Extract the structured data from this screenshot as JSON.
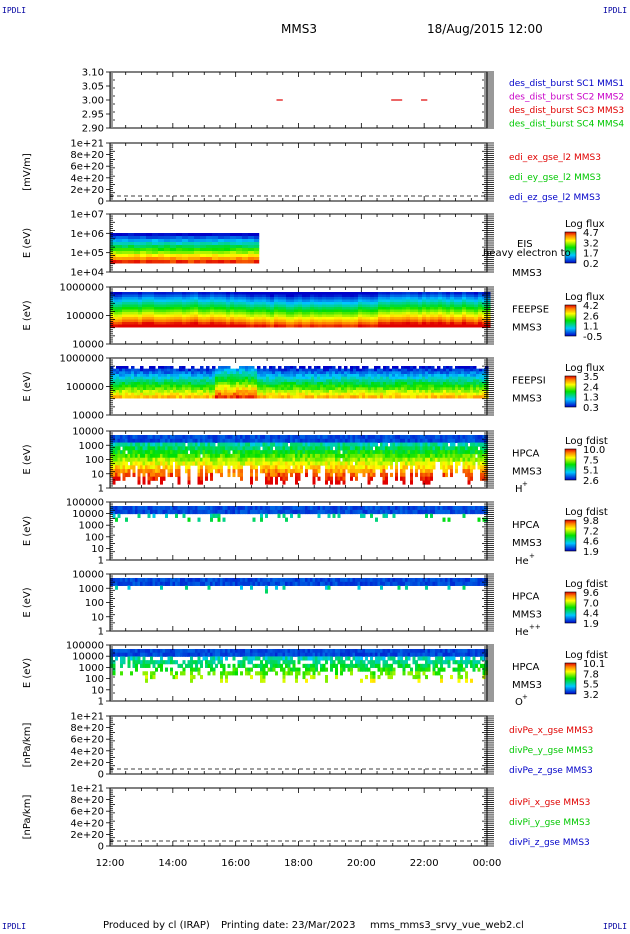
{
  "header": {
    "corner_tl": "IPDLI",
    "corner_tr": "IPDLI",
    "corner_bl": "IPDLI",
    "corner_br": "IPDLI",
    "spacecraft": "MMS3",
    "datetime": "18/Aug/2015 12:00"
  },
  "footer": {
    "produced": "Produced by cl (IRAP)",
    "printing": "Printing date: 23/Mar/2023",
    "file": "mms_mms3_srvy_vue_web2.cl"
  },
  "colors": {
    "mms1": "#0000c8",
    "mms2": "#c800c8",
    "mms3": "#e00000",
    "mms4": "#00c800",
    "x_comp": "#e00000",
    "y_comp": "#00c800",
    "z_comp": "#0000c8"
  },
  "chart_data": [
    {
      "id": "burst",
      "type": "scatter",
      "ylim": [
        2.9,
        3.1
      ],
      "yticks": [
        "3.10",
        "3.05",
        "3.00",
        "2.95",
        "2.90"
      ],
      "legend": [
        "des_dist_burst SC1 MMS1",
        "des_dist_burst SC2 MMS2",
        "des_dist_burst SC3 MMS3",
        "des_dist_burst SC4 MMS4"
      ],
      "series": [
        {
          "name": "des_dist_burst SC3 MMS3",
          "segments": [
            [
              17.3,
              17.5
            ],
            [
              20.95,
              21.3
            ],
            [
              21.9,
              22.1
            ]
          ],
          "y": 3.0
        }
      ]
    },
    {
      "id": "efield",
      "type": "line",
      "ylabel": "[mV/m]",
      "yticks": [
        "1e+21",
        "8e+20",
        "6e+20",
        "4e+20",
        "2e+20",
        "0"
      ],
      "legend": [
        "edi_ex_gse_l2 MMS3",
        "edi_ey_gse_l2 MMS3",
        "edi_ez_gse_l2 MMS3"
      ]
    },
    {
      "id": "eis",
      "type": "heatmap",
      "ylabel": "E (eV)",
      "yticks": [
        "1e+07",
        "1e+06",
        "1e+05",
        "1e+04"
      ],
      "instrument": "EIS",
      "sc": "MMS3",
      "extra_label": "heavy electron to",
      "cbar_title": "Log flux",
      "cbar_ticks": [
        "4.7",
        "3.2",
        "1.7",
        "0.2"
      ]
    },
    {
      "id": "feepse",
      "type": "heatmap",
      "ylabel": "E (eV)",
      "yticks": [
        "1000000",
        "100000",
        "10000"
      ],
      "instrument": "FEEPSE",
      "sc": "MMS3",
      "cbar_title": "Log flux",
      "cbar_ticks": [
        "4.2",
        "2.6",
        "1.1",
        "-0.5"
      ]
    },
    {
      "id": "feepsi",
      "type": "heatmap",
      "ylabel": "E (eV)",
      "yticks": [
        "1000000",
        "100000",
        "10000"
      ],
      "instrument": "FEEPSI",
      "sc": "MMS3",
      "cbar_title": "Log flux",
      "cbar_ticks": [
        "3.5",
        "2.4",
        "1.3",
        "0.3"
      ]
    },
    {
      "id": "hpca_h",
      "type": "heatmap",
      "ylabel": "E (eV)",
      "yticks": [
        "10000",
        "1000",
        "100",
        "10",
        "1"
      ],
      "instrument": "HPCA",
      "sc": "MMS3",
      "species": "H",
      "species_sup": "+",
      "cbar_title": "Log fdist",
      "cbar_ticks": [
        "10.0",
        "7.5",
        "5.1",
        "2.6"
      ]
    },
    {
      "id": "hpca_he",
      "type": "heatmap",
      "ylabel": "E (eV)",
      "yticks": [
        "100000",
        "10000",
        "1000",
        "100",
        "10",
        "1"
      ],
      "instrument": "HPCA",
      "sc": "MMS3",
      "species": "He",
      "species_sup": "+",
      "cbar_title": "Log fdist",
      "cbar_ticks": [
        "9.8",
        "7.2",
        "4.6",
        "1.9"
      ]
    },
    {
      "id": "hpca_hepp",
      "type": "heatmap",
      "ylabel": "E (eV)",
      "yticks": [
        "10000",
        "1000",
        "100",
        "10",
        "1"
      ],
      "instrument": "HPCA",
      "sc": "MMS3",
      "species": "He",
      "species_sup": "++",
      "cbar_title": "Log fdist",
      "cbar_ticks": [
        "9.6",
        "7.0",
        "4.4",
        "1.9"
      ]
    },
    {
      "id": "hpca_o",
      "type": "heatmap",
      "ylabel": "E (eV)",
      "yticks": [
        "100000",
        "10000",
        "1000",
        "100",
        "10",
        "1"
      ],
      "instrument": "HPCA",
      "sc": "MMS3",
      "species": "O",
      "species_sup": "+",
      "cbar_title": "Log fdist",
      "cbar_ticks": [
        "10.1",
        "7.8",
        "5.5",
        "3.2"
      ]
    },
    {
      "id": "divpe",
      "type": "line",
      "ylabel": "[nPa/km]",
      "yticks": [
        "1e+21",
        "8e+20",
        "6e+20",
        "4e+20",
        "2e+20",
        "0"
      ],
      "legend": [
        "divPe_x_gse MMS3",
        "divPe_y_gse MMS3",
        "divPe_z_gse MMS3"
      ]
    },
    {
      "id": "divpi",
      "type": "line",
      "ylabel": "[nPa/km]",
      "yticks": [
        "1e+21",
        "8e+20",
        "6e+20",
        "4e+20",
        "2e+20",
        "0"
      ],
      "legend": [
        "divPi_x_gse MMS3",
        "divPi_y_gse MMS3",
        "divPi_z_gse MMS3"
      ]
    }
  ],
  "xaxis": {
    "ticks": [
      "12:00",
      "14:00",
      "16:00",
      "18:00",
      "20:00",
      "22:00",
      "00:00"
    ],
    "xlim": [
      12,
      24
    ]
  }
}
